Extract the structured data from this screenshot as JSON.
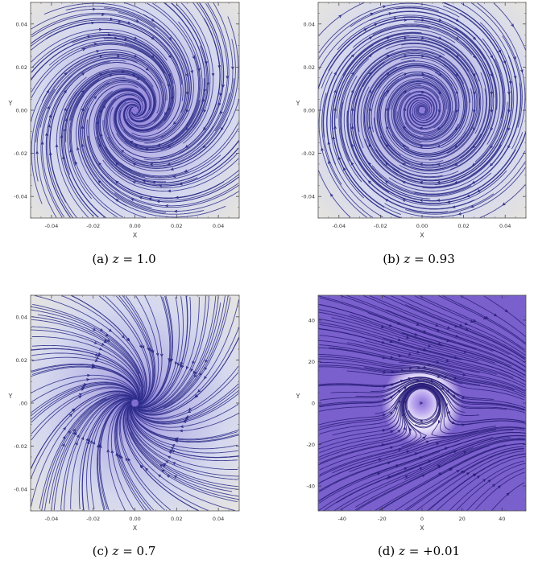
{
  "chart_data": [
    {
      "type": "streamplot",
      "panel": "a",
      "caption_prefix": "(a)",
      "caption_var": "z",
      "caption_eq": "= 1.0",
      "z": 1.0,
      "flow": "inward-spiral",
      "xlabel": "X",
      "ylabel": "Y",
      "xlim": [
        -0.05,
        0.05
      ],
      "ylim": [
        -0.05,
        0.05
      ],
      "xticks": [
        "-0.04",
        "-0.02",
        "0.00",
        "0.02",
        "0.04"
      ],
      "yticks": [
        "-0.04",
        "-0.02",
        "0.00",
        "0.02",
        "0.04"
      ],
      "background": "density shading, purple center fading to pale edges",
      "center_color": "#8a78d8",
      "edge_color": "#e8e6dc",
      "line_color": "#2c2c88"
    },
    {
      "type": "streamplot",
      "panel": "b",
      "caption_prefix": "(b)",
      "caption_var": "z",
      "caption_eq": "= 0.93",
      "z": 0.93,
      "flow": "near-circular rotation",
      "xlabel": "X",
      "ylabel": "Y",
      "xlim": [
        -0.05,
        0.05
      ],
      "ylim": [
        -0.05,
        0.05
      ],
      "xticks": [
        "-0.04",
        "-0.02",
        "0.00",
        "0.02",
        "0.04"
      ],
      "yticks": [
        "-0.04",
        "-0.02",
        "0.00",
        "0.02",
        "0.04"
      ],
      "background": "density shading, purple center fading to pale edges",
      "center_color": "#8d7bd9",
      "edge_color": "#e8e6dc",
      "line_color": "#2c2c88"
    },
    {
      "type": "streamplot",
      "panel": "c",
      "caption_prefix": "(c)",
      "caption_var": "z",
      "caption_eq": "= 0.7",
      "z": 0.7,
      "flow": "strong inward spiral",
      "xlabel": "X",
      "ylabel": "Y",
      "xlim": [
        -0.05,
        0.05
      ],
      "ylim": [
        -0.05,
        0.05
      ],
      "xticks": [
        "-0.04",
        "-0.02",
        "0.00",
        "0.02",
        "0.04"
      ],
      "yticks": [
        "-0.04",
        "-0.02",
        ".00",
        "0.02",
        "0.04"
      ],
      "background": "density shading, purple center fading to pale edges",
      "center_color": "#7d6ad2",
      "edge_color": "#e9e7de",
      "line_color": "#2c2c88"
    },
    {
      "type": "streamplot",
      "panel": "d",
      "caption_prefix": "(d)",
      "caption_var": "z",
      "caption_eq": "= +0.01",
      "z": 0.01,
      "flow": "circular orbits near center, saddle-like flow outside",
      "xlabel": "X",
      "ylabel": "Y",
      "xlim": [
        -52,
        52
      ],
      "ylim": [
        -52,
        52
      ],
      "xticks": [
        "-40",
        "-20",
        "0",
        "20",
        "40"
      ],
      "yticks": [
        "-40",
        "-20",
        "0",
        "20",
        "40"
      ],
      "background": "uniform purple with bright white ring around center",
      "center_color": "#8a70d6",
      "edge_color": "#7a60cc",
      "ring_color": "#ffffff",
      "line_color": "#2a1e7a"
    }
  ]
}
